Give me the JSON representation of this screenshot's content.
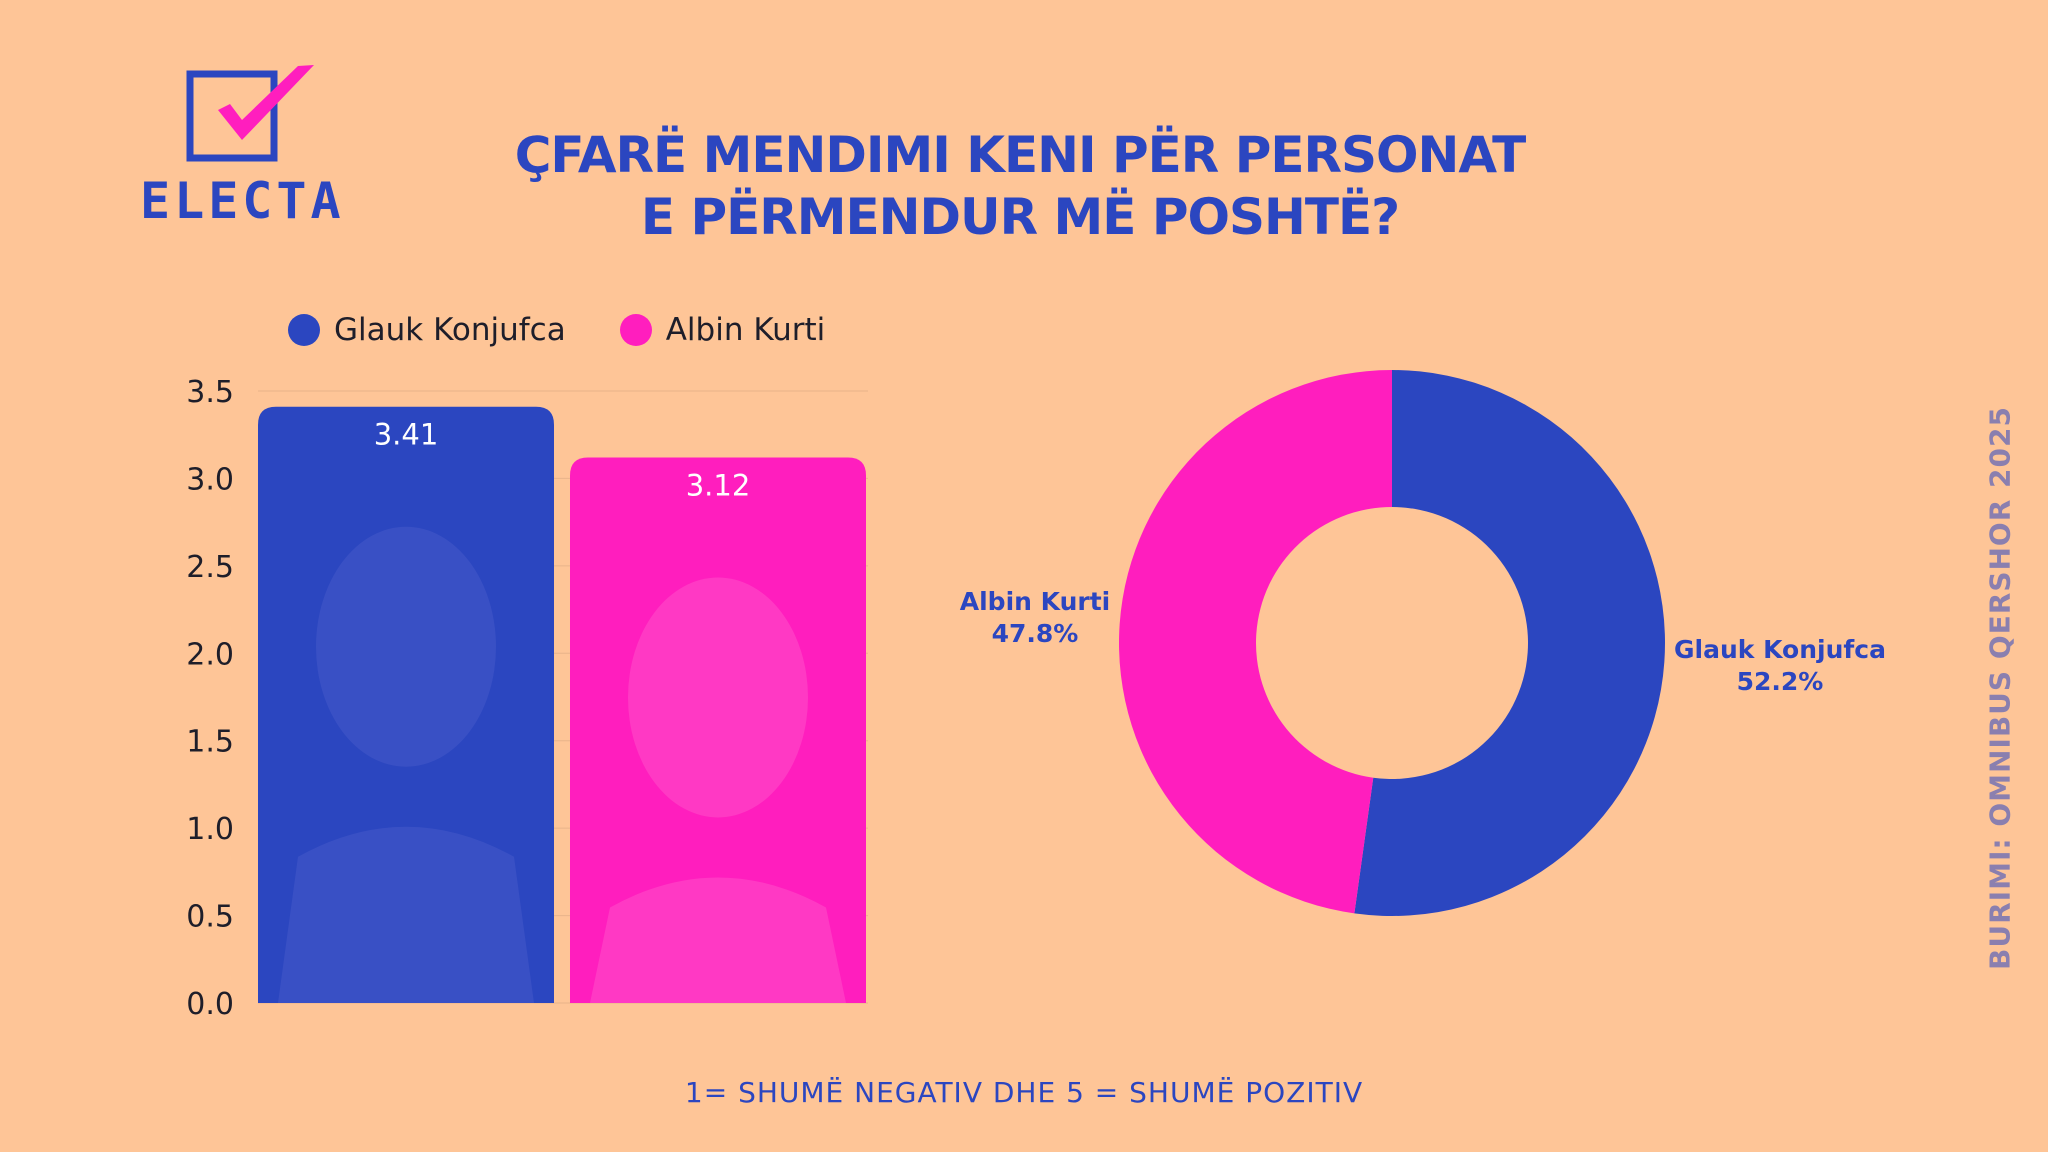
{
  "brand": {
    "name": "ELECTA",
    "colors": {
      "blue": "#2B46C0",
      "magenta": "#FF1EBE",
      "background": "#FEC597"
    }
  },
  "title_lines": [
    "ÇFARË MENDIMI KENI PËR PERSONAT",
    "E PËRMENDUR MË POSHTË?"
  ],
  "footnote": "1= SHUMË NEGATIV DHE 5 = SHUMË POZITIV",
  "source": "BURIMI: OMNIBUS QERSHOR 2025",
  "chart_data": [
    {
      "type": "bar",
      "categories": [
        "Glauk Konjufca",
        "Albin Kurti"
      ],
      "values": [
        3.41,
        3.12
      ],
      "data_labels": [
        "3.41",
        "3.12"
      ],
      "colors": [
        "#2B46C0",
        "#FF1EBE"
      ],
      "legend": {
        "placement": "top",
        "entries": [
          "Glauk Konjufca",
          "Albin Kurti"
        ]
      },
      "ylim": [
        0,
        3.5
      ],
      "yticks": [
        "0.0",
        "0.5",
        "1.0",
        "1.5",
        "2.0",
        "2.5",
        "3.0",
        "3.5"
      ],
      "grid": true
    },
    {
      "type": "pie",
      "variant": "donut",
      "slices": [
        {
          "name": "Glauk Konjufca",
          "value": 52.2,
          "label": "52.2%",
          "color": "#2B46C0"
        },
        {
          "name": "Albin Kurti",
          "value": 47.8,
          "label": "47.8%",
          "color": "#FF1EBE"
        }
      ]
    }
  ]
}
